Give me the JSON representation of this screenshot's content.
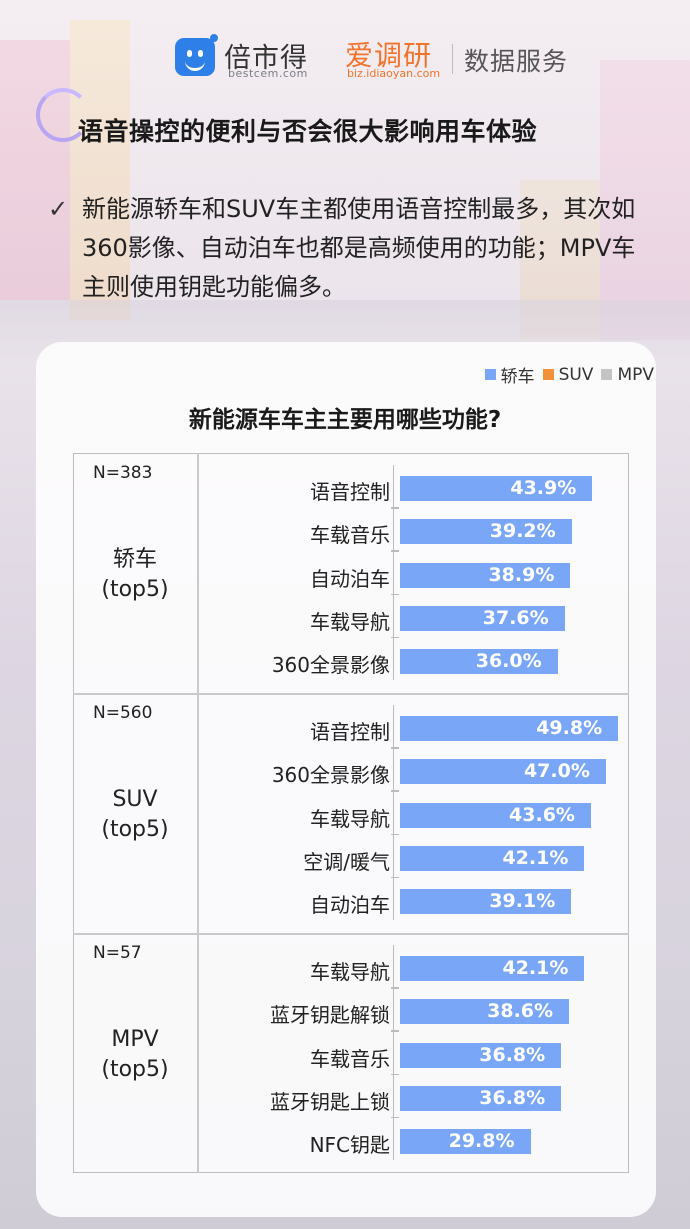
{
  "header": {
    "brand1": "倍市得",
    "brand1_sub": "bestcem.com",
    "brand2": "爱调研",
    "brand2_sub": "biz.idiaoyan.com",
    "brand3": "数据服务"
  },
  "title": "语音操控的便利与否会很大影响用车体验",
  "summary": "新能源轿车和SUV车主都使用语音控制最多，其次如360影像、自动泊车也都是高频使用的功能；MPV车主则使用钥匙功能偏多。",
  "colors": {
    "sedan": "#7aa6f7",
    "suv": "#f2913a",
    "mpv": "#c4c4c4"
  },
  "chart_data": {
    "type": "bar",
    "orientation": "horizontal",
    "title": "新能源车车主主要用哪些功能?",
    "legend": [
      "轿车",
      "SUV",
      "MPV"
    ],
    "legend_position": "top-right",
    "unit": "%",
    "groups": [
      {
        "name": "轿车\n(top5)",
        "n": "N=383",
        "categories": [
          "语音控制",
          "车载音乐",
          "自动泊车",
          "车载导航",
          "360全景影像"
        ],
        "values": [
          43.9,
          39.2,
          38.9,
          37.6,
          36.0
        ],
        "labels": [
          "43.9%",
          "39.2%",
          "38.9%",
          "37.6%",
          "36.0%"
        ]
      },
      {
        "name": "SUV\n(top5)",
        "n": "N=560",
        "categories": [
          "语音控制",
          "360全景影像",
          "车载导航",
          "空调/暖气",
          "自动泊车"
        ],
        "values": [
          49.8,
          47.0,
          43.6,
          42.1,
          39.1
        ],
        "labels": [
          "49.8%",
          "47.0%",
          "43.6%",
          "42.1%",
          "39.1%"
        ]
      },
      {
        "name": "MPV\n(top5)",
        "n": "N=57",
        "categories": [
          "车载导航",
          "蓝牙钥匙解锁",
          "车载音乐",
          "蓝牙钥匙上锁",
          "NFC钥匙"
        ],
        "values": [
          42.1,
          38.6,
          36.8,
          36.8,
          29.8
        ],
        "labels": [
          "42.1%",
          "38.6%",
          "36.8%",
          "36.8%",
          "29.8%"
        ]
      }
    ]
  }
}
